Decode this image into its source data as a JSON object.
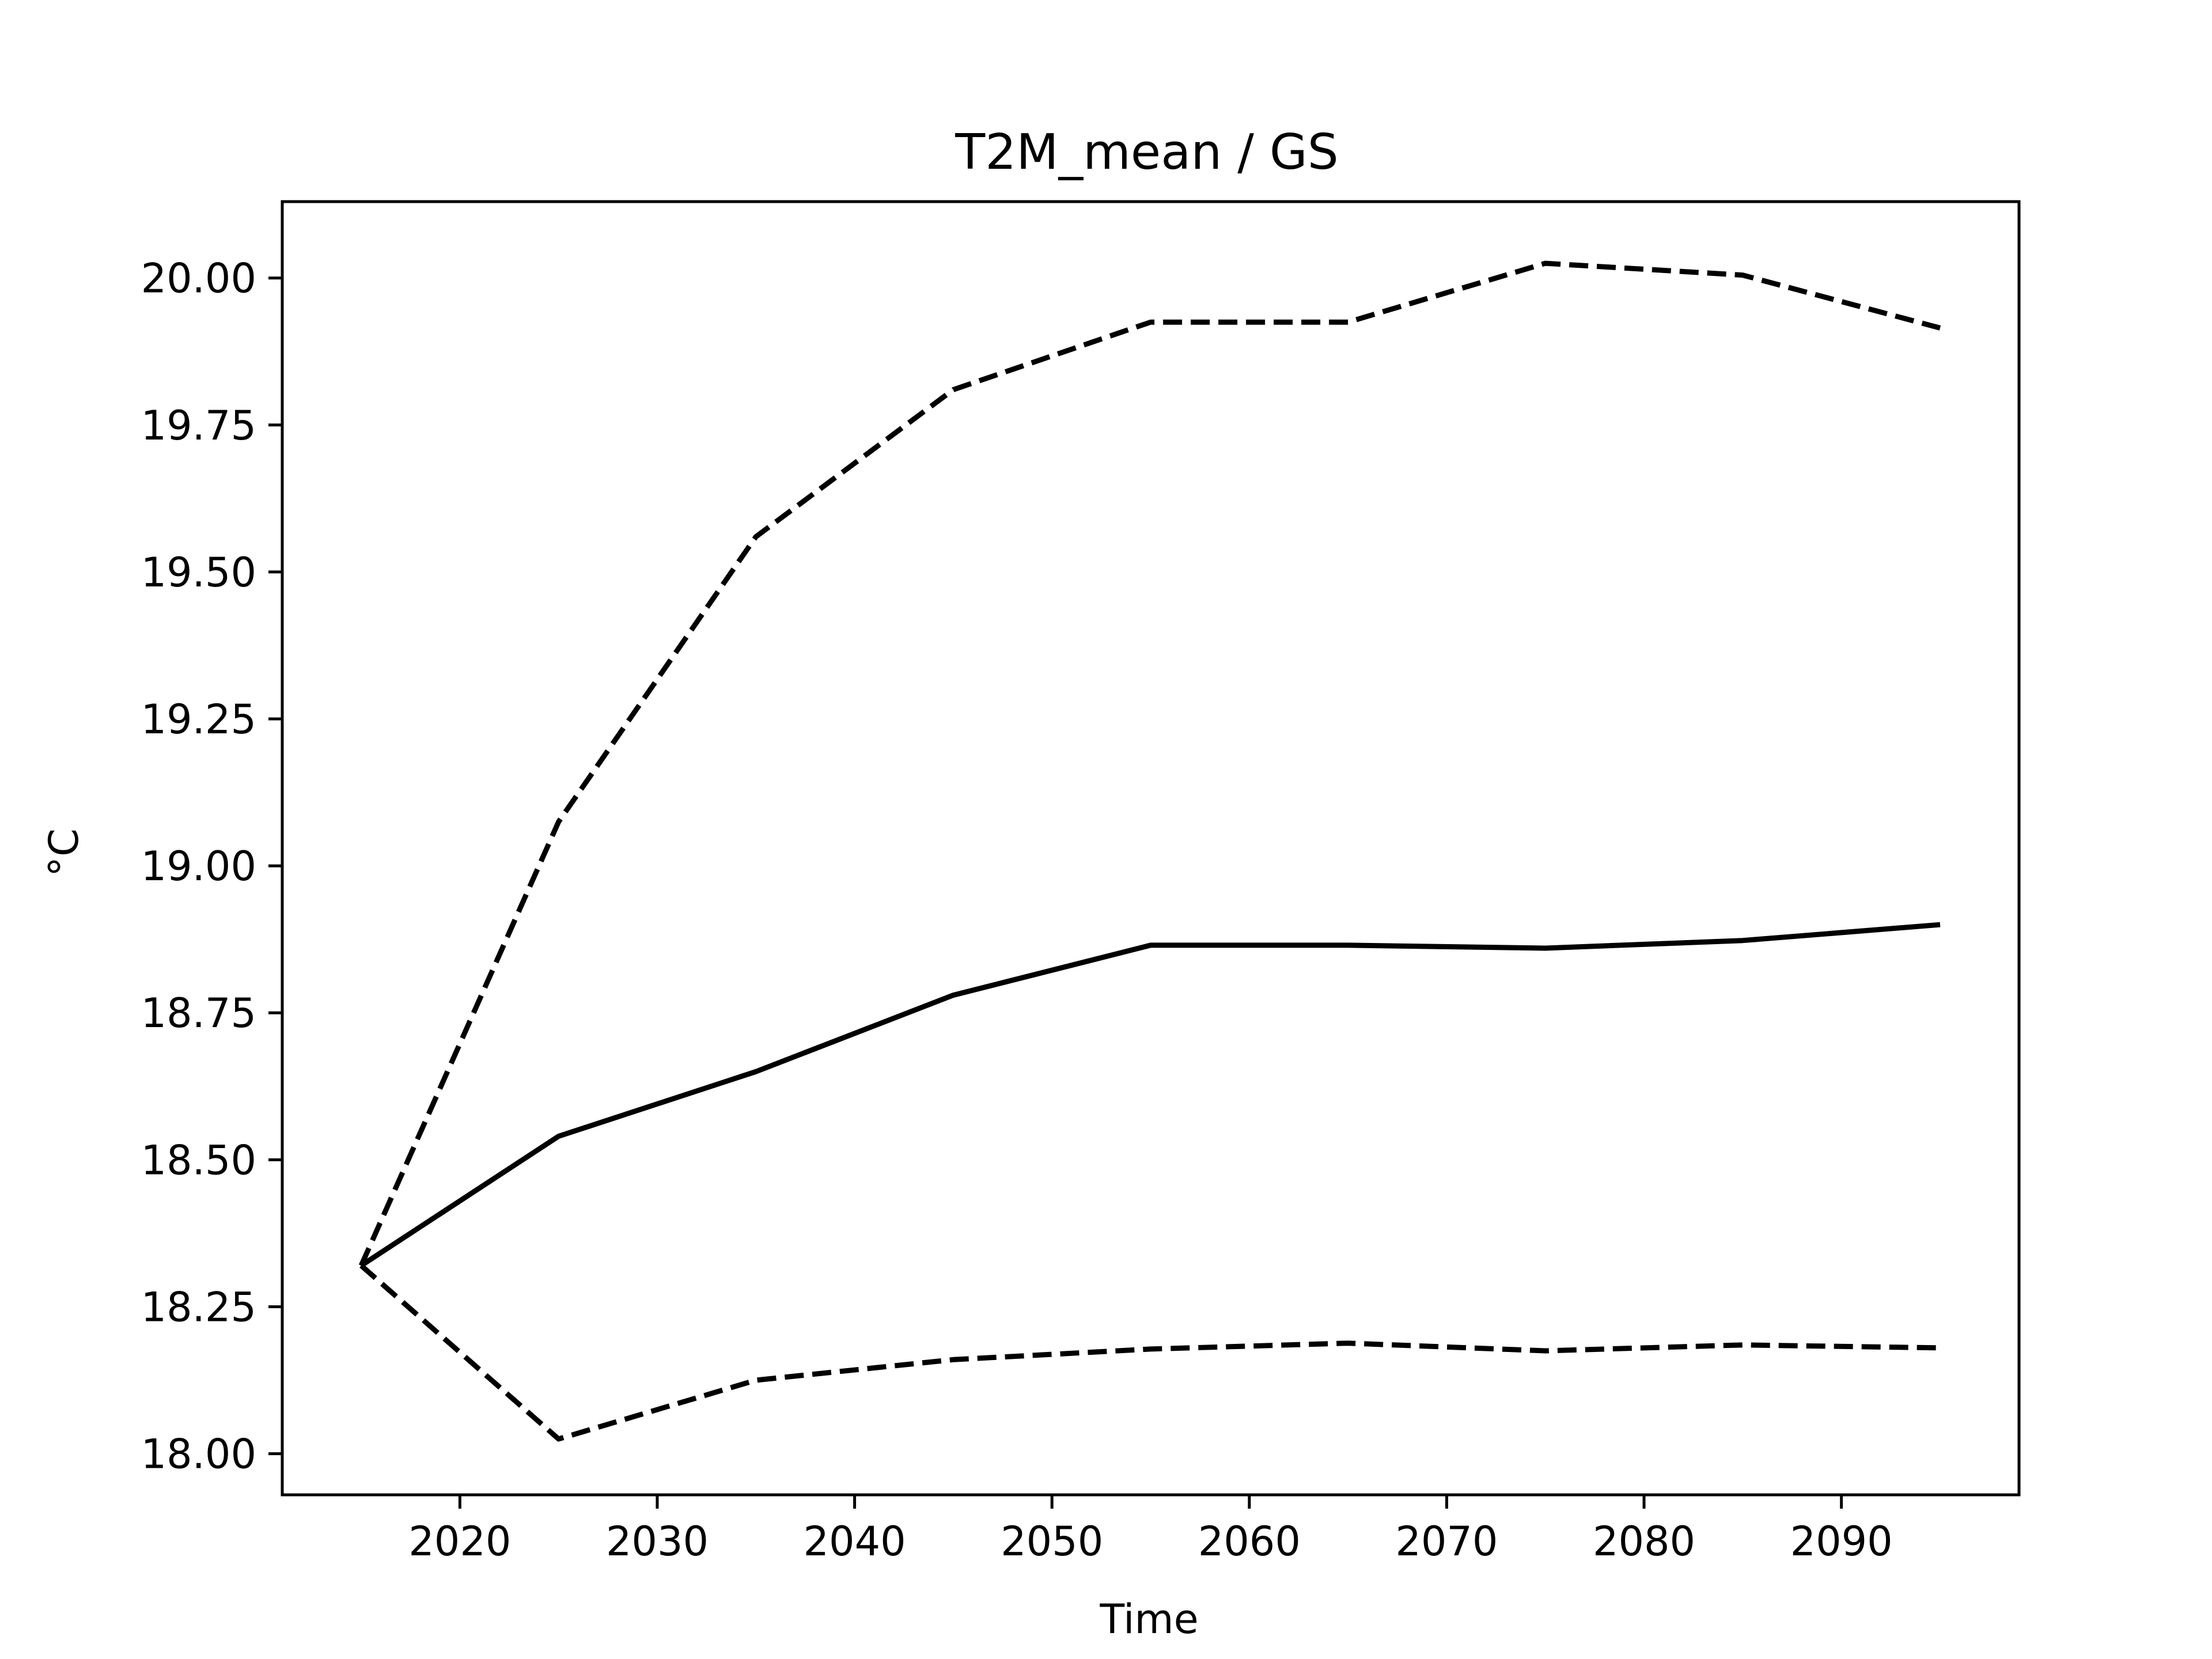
{
  "chart_data": {
    "type": "line",
    "title": "T2M_mean / GS",
    "xlabel": "Time",
    "ylabel": "°C",
    "x": [
      2015,
      2025,
      2035,
      2045,
      2055,
      2065,
      2075,
      2085,
      2095
    ],
    "series": [
      {
        "style": "solid",
        "values": [
          18.32,
          18.54,
          18.65,
          18.78,
          18.865,
          18.865,
          18.86,
          18.873,
          18.9
        ]
      },
      {
        "style": "dashed",
        "values": [
          18.32,
          19.075,
          19.56,
          19.81,
          19.925,
          19.925,
          20.025,
          20.005,
          19.915
        ]
      },
      {
        "style": "dashed",
        "values": [
          18.32,
          18.025,
          18.125,
          18.16,
          18.178,
          18.188,
          18.175,
          18.185,
          18.18
        ]
      }
    ],
    "xlim": [
      2011.0,
      2099.0
    ],
    "ylim": [
      17.93,
      20.13
    ],
    "xticks": [
      2020,
      2030,
      2040,
      2050,
      2060,
      2070,
      2080,
      2090
    ],
    "xtick_labels": [
      "2020",
      "2030",
      "2040",
      "2050",
      "2060",
      "2070",
      "2080",
      "2090"
    ],
    "yticks": [
      18.0,
      18.25,
      18.5,
      18.75,
      19.0,
      19.25,
      19.5,
      19.75,
      20.0
    ],
    "ytick_labels": [
      "18.00",
      "18.25",
      "18.50",
      "18.75",
      "19.00",
      "19.25",
      "19.50",
      "19.75",
      "20.00"
    ],
    "line_color": "#000000",
    "grid": false,
    "legend": "none"
  }
}
